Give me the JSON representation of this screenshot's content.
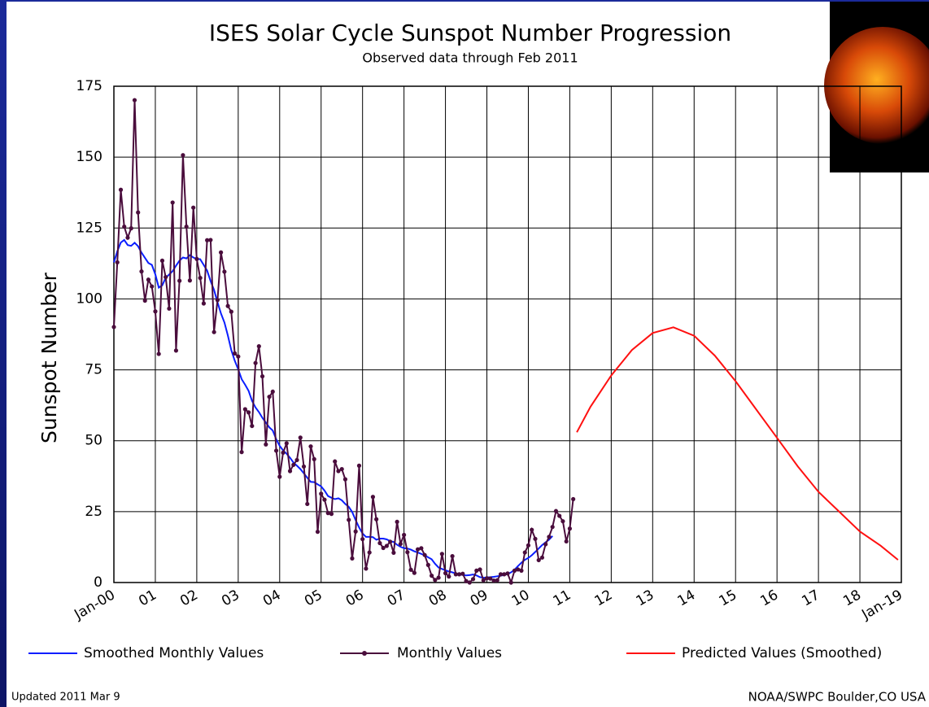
{
  "chart_data": {
    "type": "line",
    "title": "ISES Solar Cycle Sunspot Number Progression",
    "subtitle": "Observed data through Feb 2011",
    "y_label": "Sunspot Number",
    "footer_left": "Updated 2011 Mar 9",
    "footer_right": "NOAA/SWPC Boulder,CO USA",
    "grid": true,
    "xlim": [
      2000,
      2019
    ],
    "ylim": [
      0,
      175
    ],
    "yticks": [
      0,
      25,
      50,
      75,
      100,
      125,
      150,
      175
    ],
    "xticks": [
      {
        "value": 2000,
        "label": "Jan-00"
      },
      {
        "value": 2001,
        "label": "01"
      },
      {
        "value": 2002,
        "label": "02"
      },
      {
        "value": 2003,
        "label": "03"
      },
      {
        "value": 2004,
        "label": "04"
      },
      {
        "value": 2005,
        "label": "05"
      },
      {
        "value": 2006,
        "label": "06"
      },
      {
        "value": 2007,
        "label": "07"
      },
      {
        "value": 2008,
        "label": "08"
      },
      {
        "value": 2009,
        "label": "09"
      },
      {
        "value": 2010,
        "label": "10"
      },
      {
        "value": 2011,
        "label": "11"
      },
      {
        "value": 2012,
        "label": "12"
      },
      {
        "value": 2013,
        "label": "13"
      },
      {
        "value": 2014,
        "label": "14"
      },
      {
        "value": 2015,
        "label": "15"
      },
      {
        "value": 2016,
        "label": "16"
      },
      {
        "value": 2017,
        "label": "17"
      },
      {
        "value": 2018,
        "label": "18"
      },
      {
        "value": 2019,
        "label": "Jan-19"
      }
    ],
    "x": [
      2000,
      2000.083,
      2000.167,
      2000.25,
      2000.333,
      2000.417,
      2000.5,
      2000.583,
      2000.667,
      2000.75,
      2000.833,
      2000.917,
      2001,
      2001.083,
      2001.167,
      2001.25,
      2001.333,
      2001.417,
      2001.5,
      2001.583,
      2001.667,
      2001.75,
      2001.833,
      2001.917,
      2002,
      2002.083,
      2002.167,
      2002.25,
      2002.333,
      2002.417,
      2002.5,
      2002.583,
      2002.667,
      2002.75,
      2002.833,
      2002.917,
      2003,
      2003.083,
      2003.167,
      2003.25,
      2003.333,
      2003.417,
      2003.5,
      2003.583,
      2003.667,
      2003.75,
      2003.833,
      2003.917,
      2004,
      2004.083,
      2004.167,
      2004.25,
      2004.333,
      2004.417,
      2004.5,
      2004.583,
      2004.667,
      2004.75,
      2004.833,
      2004.917,
      2005,
      2005.083,
      2005.167,
      2005.25,
      2005.333,
      2005.417,
      2005.5,
      2005.583,
      2005.667,
      2005.75,
      2005.833,
      2005.917,
      2006,
      2006.083,
      2006.167,
      2006.25,
      2006.333,
      2006.417,
      2006.5,
      2006.583,
      2006.667,
      2006.75,
      2006.833,
      2006.917,
      2007,
      2007.083,
      2007.167,
      2007.25,
      2007.333,
      2007.417,
      2007.5,
      2007.583,
      2007.667,
      2007.75,
      2007.833,
      2007.917,
      2008,
      2008.083,
      2008.167,
      2008.25,
      2008.333,
      2008.417,
      2008.5,
      2008.583,
      2008.667,
      2008.75,
      2008.833,
      2008.917,
      2009,
      2009.083,
      2009.167,
      2009.25,
      2009.333,
      2009.417,
      2009.5,
      2009.583,
      2009.667,
      2009.75,
      2009.833,
      2009.917,
      2010,
      2010.083,
      2010.167,
      2010.25,
      2010.333,
      2010.417,
      2010.5,
      2010.583,
      2010.667,
      2010.75,
      2010.833,
      2010.917,
      2011,
      2011.083
    ],
    "series": [
      {
        "name": "Smoothed Monthly Values",
        "color": "#0a1eff",
        "values": [
          112.9,
          116.8,
          119.9,
          120.8,
          119.0,
          118.7,
          119.8,
          118.6,
          116.3,
          114.5,
          112.7,
          112.0,
          108.7,
          104.0,
          104.8,
          107.5,
          108.6,
          109.8,
          111.7,
          113.5,
          114.6,
          114.3,
          115.4,
          114.6,
          114.1,
          114.0,
          112.0,
          110.0,
          106.3,
          103.2,
          98.8,
          94.9,
          91.7,
          87.1,
          82.0,
          78.2,
          75.2,
          71.7,
          69.7,
          67.6,
          64.1,
          61.7,
          60.1,
          58.1,
          56.4,
          54.7,
          53.6,
          50.5,
          48.2,
          46.6,
          45.4,
          44.0,
          42.3,
          41.2,
          40.0,
          38.5,
          36.9,
          35.5,
          35.4,
          34.6,
          33.9,
          32.4,
          30.5,
          29.9,
          29.4,
          29.7,
          29.0,
          27.7,
          26.7,
          24.9,
          22.0,
          19.4,
          17.3,
          16.1,
          16.1,
          16.0,
          15.1,
          15.5,
          15.5,
          15.2,
          14.6,
          14.3,
          13.3,
          12.6,
          12.1,
          12.0,
          11.6,
          11.0,
          10.6,
          10.1,
          9.6,
          8.9,
          8.2,
          6.6,
          5.3,
          4.8,
          4.3,
          3.9,
          3.6,
          3.2,
          2.9,
          2.7,
          2.5,
          2.6,
          2.8,
          2.5,
          1.9,
          1.7,
          1.8,
          1.9,
          2.0,
          2.2,
          2.4,
          2.7,
          3.0,
          3.6,
          4.5,
          5.8,
          7.0,
          8.0,
          8.7,
          9.6,
          10.8,
          12.0,
          13.2,
          14.2,
          15.1,
          16.4,
          null,
          null,
          null,
          null,
          null,
          null
        ]
      },
      {
        "name": "Monthly Values",
        "color": "#4a0d3c",
        "values": [
          90.1,
          112.9,
          138.5,
          125.5,
          121.6,
          124.9,
          170.1,
          130.5,
          109.7,
          99.4,
          106.8,
          104.4,
          95.6,
          80.6,
          113.5,
          107.7,
          96.6,
          134.0,
          81.8,
          106.4,
          150.7,
          125.5,
          106.5,
          132.2,
          114.1,
          107.4,
          98.4,
          120.7,
          120.8,
          88.3,
          99.6,
          116.4,
          109.6,
          97.5,
          95.5,
          80.8,
          79.7,
          46.0,
          61.1,
          60.0,
          55.2,
          77.4,
          83.3,
          72.7,
          48.7,
          65.5,
          67.3,
          46.5,
          37.3,
          45.8,
          49.1,
          39.3,
          41.5,
          43.2,
          51.1,
          40.9,
          27.7,
          48.0,
          43.5,
          17.9,
          31.3,
          29.2,
          24.5,
          24.2,
          42.7,
          39.3,
          40.0,
          36.4,
          22.1,
          8.5,
          18.0,
          41.2,
          15.3,
          4.9,
          10.6,
          30.2,
          22.3,
          13.9,
          12.2,
          12.9,
          14.4,
          10.5,
          21.4,
          13.6,
          16.8,
          10.7,
          4.5,
          3.4,
          11.7,
          12.1,
          9.7,
          6.2,
          2.4,
          0.9,
          1.7,
          10.1,
          3.3,
          2.1,
          9.3,
          2.9,
          2.9,
          3.1,
          0.5,
          0.0,
          1.2,
          4.2,
          4.6,
          0.8,
          1.5,
          1.4,
          0.7,
          0.8,
          2.9,
          2.9,
          3.2,
          0.0,
          4.2,
          4.6,
          4.2,
          10.6,
          13.1,
          18.6,
          15.4,
          7.9,
          8.8,
          13.5,
          16.1,
          19.6,
          25.2,
          23.5,
          21.6,
          14.5,
          19.0,
          29.4
        ]
      },
      {
        "name": "Predicted Values (Smoothed)",
        "color": "#ff1010",
        "x": [
          2011.17,
          2011.5,
          2012,
          2012.5,
          2013,
          2013.5,
          2014,
          2014.5,
          2015,
          2015.5,
          2016,
          2016.5,
          2017,
          2017.5,
          2018,
          2018.5,
          2018.92
        ],
        "values": [
          53,
          62,
          73,
          82,
          88,
          90,
          87,
          80,
          71,
          61,
          51,
          41,
          32,
          25,
          18,
          13,
          8
        ]
      }
    ]
  }
}
